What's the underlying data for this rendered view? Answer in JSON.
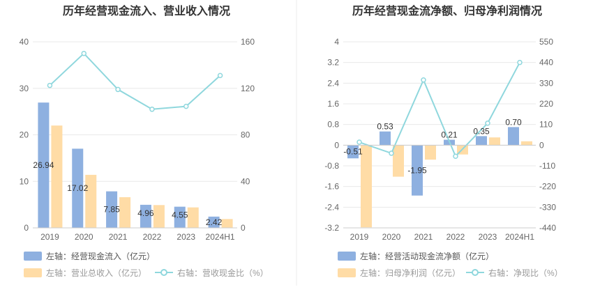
{
  "colors": {
    "bar_blue": "#8eb0e0",
    "bar_orange": "#ffdca6",
    "line_cyan": "#8fd7dd",
    "grid": "#e8e8e8",
    "divider": "#eeeeee"
  },
  "chart_data": [
    {
      "type": "bar",
      "title": "历年经营现金流入、营业收入情况",
      "categories": [
        "2019",
        "2020",
        "2021",
        "2022",
        "2023",
        "2024H1"
      ],
      "y_left": {
        "min": 0,
        "max": 40,
        "ticks": [
          "0",
          "10",
          "20",
          "30",
          "40"
        ]
      },
      "y_right": {
        "min": 0,
        "max": 160,
        "ticks": [
          "0",
          "40",
          "80",
          "120",
          "160"
        ]
      },
      "series": [
        {
          "name": "左轴：经营现金流入（亿元）",
          "axis": "left",
          "kind": "bar",
          "color": "#8eb0e0",
          "values": [
            26.94,
            17.02,
            7.85,
            4.96,
            4.55,
            2.42
          ],
          "labels": [
            "26.94",
            "17.02",
            "7.85",
            "4.96",
            "4.55",
            "2.42"
          ]
        },
        {
          "name": "左轴：营业总收入（亿元）",
          "axis": "left",
          "kind": "bar",
          "color": "#ffdca6",
          "values": [
            22.0,
            11.4,
            6.6,
            4.9,
            4.4,
            1.9
          ]
        },
        {
          "name": "右轴：营收现金比（%）",
          "axis": "right",
          "kind": "line",
          "color": "#8fd7dd",
          "values": [
            122.5,
            150.0,
            119.0,
            102.0,
            104.5,
            131.0
          ]
        }
      ]
    },
    {
      "type": "bar",
      "title": "历年经营现金流净额、归母净利润情况",
      "categories": [
        "2019",
        "2020",
        "2021",
        "2022",
        "2023",
        "2024H1"
      ],
      "y_left": {
        "min": -3.2,
        "max": 4,
        "ticks": [
          "-3.2",
          "-2.4",
          "-1.6",
          "-0.8",
          "0",
          "0.8",
          "1.6",
          "2.4",
          "3.2",
          "4"
        ]
      },
      "y_right": {
        "min": -440,
        "max": 550,
        "ticks": [
          "-440",
          "-330",
          "-220",
          "-110",
          "0",
          "110",
          "220",
          "330",
          "440",
          "550"
        ]
      },
      "series": [
        {
          "name": "左轴：经营活动现金流净额（亿元）",
          "axis": "left",
          "kind": "bar",
          "color": "#8eb0e0",
          "values": [
            -0.51,
            0.53,
            -1.95,
            0.21,
            0.35,
            0.7
          ],
          "labels": [
            "-0.51",
            "0.53",
            "-1.95",
            "0.21",
            "0.35",
            "0.70"
          ]
        },
        {
          "name": "左轴：归母净利润（亿元）",
          "axis": "left",
          "kind": "bar",
          "color": "#ffdca6",
          "values": [
            -3.18,
            -1.22,
            -0.56,
            -0.36,
            0.3,
            0.15
          ]
        },
        {
          "name": "右轴：净现比（%）",
          "axis": "right",
          "kind": "line",
          "color": "#8fd7dd",
          "values": [
            16,
            -43,
            347,
            -59,
            117,
            440
          ]
        }
      ]
    }
  ]
}
